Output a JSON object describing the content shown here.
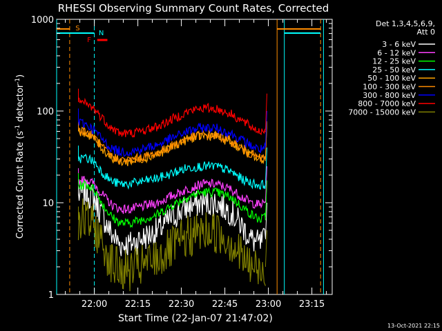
{
  "chart_data": {
    "type": "line",
    "title": "RHESSI Observing Summary Count Rates, Corrected",
    "xlabel": "Start Time (22-Jan-07 21:47:02)",
    "ylabel_main": "Corrected Count Rate (s",
    "ylabel_sup1": "-1",
    "ylabel_mid": " detector",
    "ylabel_sup2": "-1",
    "ylabel_end": ")",
    "y_scale": "log",
    "ylim": [
      1,
      1000
    ],
    "y_ticks": [
      {
        "value": 1,
        "label": "1"
      },
      {
        "value": 10,
        "label": "10"
      },
      {
        "value": 100,
        "label": "100"
      },
      {
        "value": 1000,
        "label": "1000"
      }
    ],
    "xlim_minutes_after_2147": [
      0,
      95
    ],
    "x_ticks": [
      {
        "label": "22:00",
        "minutes": 13
      },
      {
        "label": "22:15",
        "minutes": 28
      },
      {
        "label": "22:30",
        "minutes": 43
      },
      {
        "label": "22:45",
        "minutes": 58
      },
      {
        "label": "23:00",
        "minutes": 73
      },
      {
        "label": "23:15",
        "minutes": 88
      }
    ],
    "legend_title_1": "Det 1,3,4,5,6,9,",
    "legend_title_2": "Att 0",
    "legend_position": "top-right, outside plot",
    "series": [
      {
        "name": "3 - 6 keV",
        "color": "#ffffff",
        "values": [
          12,
          13,
          11,
          7,
          4.5,
          3.5,
          3.5,
          4,
          5,
          7,
          9,
          10,
          10,
          8,
          5.5,
          4,
          3.5,
          4
        ]
      },
      {
        "name": "6 - 12 keV",
        "color": "#ff40ff",
        "values": [
          17,
          18,
          16,
          12,
          9.5,
          8.5,
          8.5,
          9,
          10,
          12,
          14,
          16,
          16,
          14,
          11.5,
          10,
          9.5,
          10
        ]
      },
      {
        "name": "12 - 25 keV",
        "color": "#00ff00",
        "values": [
          15,
          16,
          14,
          9.5,
          7,
          6,
          6,
          6.5,
          7.5,
          9.5,
          11.5,
          13,
          13,
          11.5,
          9,
          7.5,
          6.5,
          7
        ]
      },
      {
        "name": "25 - 50 keV",
        "color": "#00ffff",
        "values": [
          30,
          31,
          28,
          21,
          17,
          16,
          16,
          17,
          18.5,
          21,
          24,
          25,
          25,
          22,
          18,
          16.5,
          15.5,
          16
        ]
      },
      {
        "name": "50 - 100 keV",
        "color": "#ffa500",
        "values": [
          60,
          58,
          50,
          38,
          31,
          28,
          28,
          30,
          34,
          41,
          49,
          54,
          53,
          46,
          38,
          33,
          29.5,
          30
        ]
      },
      {
        "name": "100 - 300 keV",
        "color": "#ff8c00",
        "values": [
          62,
          60,
          52,
          39,
          32,
          29,
          29,
          31,
          35,
          42,
          50,
          55,
          54,
          47,
          39,
          34,
          30.5,
          31
        ]
      },
      {
        "name": "300 - 800 keV",
        "color": "#0000ff",
        "values": [
          76,
          72,
          62,
          48,
          39,
          36,
          36,
          38,
          43,
          51,
          60,
          66,
          65,
          57,
          48,
          42,
          38,
          40
        ]
      },
      {
        "name": "800 - 7000 keV",
        "color": "#ff0000",
        "values": [
          125,
          120,
          105,
          82,
          65,
          57,
          57,
          60,
          68,
          82,
          98,
          108,
          106,
          93,
          78,
          67,
          60,
          62
        ]
      },
      {
        "name": "7000 - 15000 keV",
        "color": "#808000",
        "values": [
          6.5,
          6.5,
          5.5,
          3.5,
          2.2,
          1.8,
          1.8,
          2,
          2.5,
          3.2,
          4.2,
          4.8,
          4.8,
          3.8,
          2.5,
          2,
          1.8,
          2
        ]
      }
    ],
    "series_x_minutes": [
      7.5,
      10,
      13,
      16,
      19,
      22,
      25,
      29,
      35,
      40,
      45,
      50,
      55,
      60,
      64,
      67,
      70,
      72
    ],
    "annotations": [
      {
        "label": "S",
        "color": "#ff8c00"
      },
      {
        "label": "N",
        "color": "#00ffff"
      },
      {
        "label": "F",
        "color": "#ff0000"
      }
    ],
    "grid": false
  },
  "footer": {
    "timestamp": "13-Oct-2021 22:15"
  }
}
